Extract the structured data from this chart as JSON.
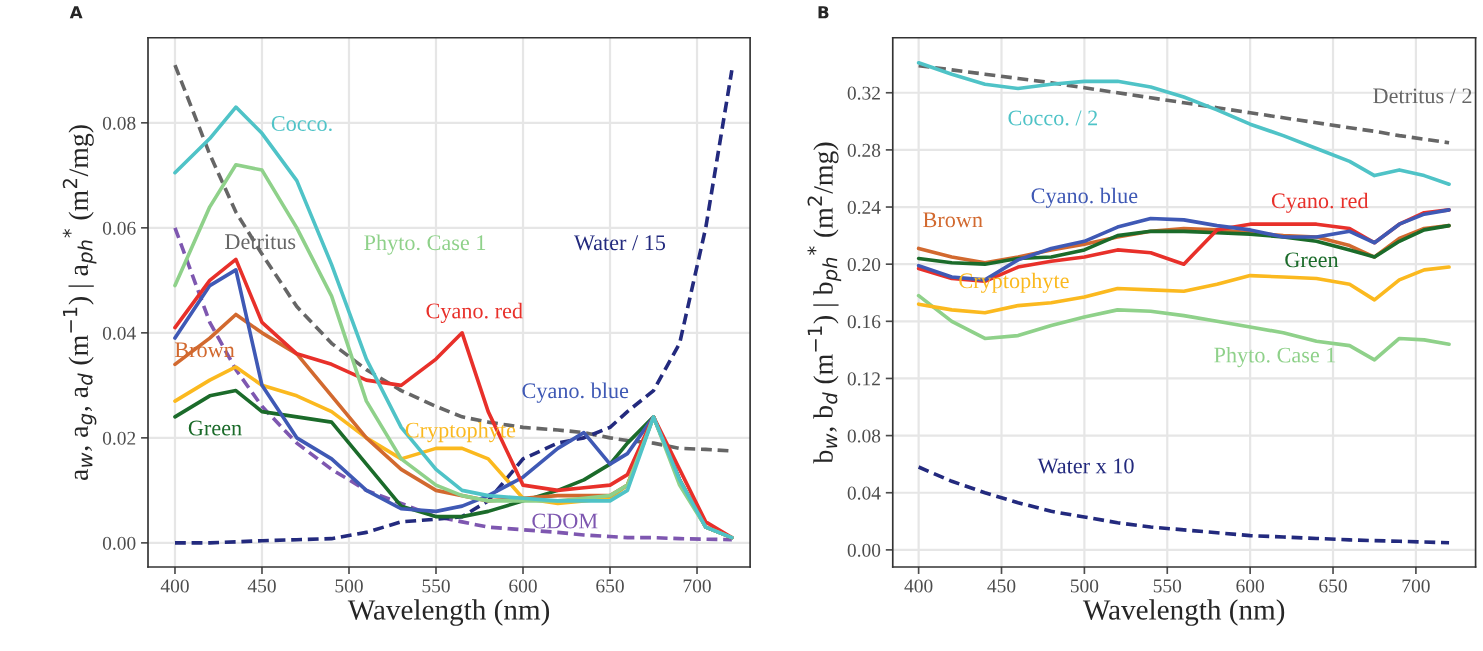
{
  "chart_data": [
    {
      "type": "line",
      "title": "A",
      "xlabel": "Wavelength (nm)",
      "ylabel": "a$_{w}$, a$_{g}$, a$_{d}$ (m$^{−1}$) | a$_{ph}$$^{*}$ (m$^{2}$/mg)",
      "xlim": [
        384.5,
        730.5
      ],
      "ylim": [
        -0.0046,
        0.0962
      ],
      "xticks": [
        400,
        450,
        500,
        550,
        600,
        650,
        700
      ],
      "yticks": [
        {
          "value": 0,
          "label": "0.00"
        },
        {
          "value": 0.02,
          "label": "0.02"
        },
        {
          "value": 0.04,
          "label": "0.04"
        },
        {
          "value": 0.06,
          "label": "0.06"
        },
        {
          "value": 0.08,
          "label": "0.08"
        }
      ],
      "grid": true,
      "legend": false,
      "x": [
        400,
        420,
        435,
        450,
        470,
        490,
        510,
        530,
        550,
        565,
        580,
        600,
        620,
        635,
        650,
        660,
        675,
        690,
        705,
        720
      ],
      "series": [
        {
          "name": "Detritus",
          "color": "#666666",
          "line_style": "dashed",
          "values": [
            0.091,
            0.074,
            0.063,
            0.055,
            0.045,
            0.038,
            0.033,
            0.029,
            0.026,
            0.024,
            0.023,
            0.022,
            0.0215,
            0.021,
            0.02,
            0.0195,
            0.019,
            0.018,
            0.0178,
            0.0175
          ]
        },
        {
          "name": "CDOM",
          "color": "#7e57b0",
          "line_style": "dashed",
          "values": [
            0.06,
            0.042,
            0.033,
            0.026,
            0.019,
            0.014,
            0.01,
            0.0075,
            0.005,
            0.004,
            0.003,
            0.0025,
            0.002,
            0.0015,
            0.0012,
            0.001,
            0.001,
            0.0008,
            0.0007,
            0.0006
          ]
        },
        {
          "name": "Water / 15",
          "color": "#232a7e",
          "line_style": "dashed",
          "values": [
            0.0,
            0.0,
            0.0002,
            0.0004,
            0.0006,
            0.0008,
            0.002,
            0.004,
            0.0045,
            0.005,
            0.008,
            0.016,
            0.019,
            0.02,
            0.022,
            0.025,
            0.029,
            0.038,
            0.06,
            0.09
          ]
        },
        {
          "name": "Green",
          "color": "#1b6b2a",
          "line_style": "solid",
          "values": [
            0.024,
            0.028,
            0.029,
            0.025,
            0.024,
            0.023,
            0.015,
            0.007,
            0.005,
            0.005,
            0.006,
            0.008,
            0.01,
            0.012,
            0.015,
            0.019,
            0.024,
            0.012,
            0.003,
            0.001
          ]
        },
        {
          "name": "Cryptophyte",
          "color": "#fbb91f",
          "line_style": "solid",
          "values": [
            0.027,
            0.031,
            0.0335,
            0.03,
            0.028,
            0.025,
            0.02,
            0.016,
            0.018,
            0.018,
            0.016,
            0.0085,
            0.0075,
            0.008,
            0.0085,
            0.011,
            0.024,
            null,
            null,
            null
          ]
        },
        {
          "name": "Brown",
          "color": "#d2692f",
          "line_style": "solid",
          "values": [
            0.034,
            0.039,
            0.0435,
            0.04,
            0.036,
            0.028,
            0.02,
            0.014,
            0.01,
            0.009,
            0.008,
            0.0085,
            0.009,
            0.009,
            0.009,
            0.011,
            0.024,
            0.012,
            0.003,
            0.001
          ]
        },
        {
          "name": "Cyano. blue",
          "color": "#3f59b5",
          "line_style": "solid",
          "values": [
            0.039,
            0.049,
            0.052,
            0.03,
            0.02,
            0.016,
            0.01,
            0.0065,
            0.006,
            0.007,
            0.009,
            0.0125,
            0.018,
            0.021,
            0.015,
            0.017,
            0.024,
            0.012,
            null,
            null
          ]
        },
        {
          "name": "Cyano. red",
          "color": "#e8302a",
          "line_style": "solid",
          "values": [
            0.041,
            0.05,
            0.054,
            0.042,
            0.036,
            0.034,
            0.031,
            0.03,
            0.035,
            0.04,
            0.025,
            0.011,
            0.01,
            0.0105,
            0.011,
            0.013,
            0.024,
            0.014,
            0.004,
            0.001
          ]
        },
        {
          "name": "Phyto. Case 1",
          "color": "#8fd18a",
          "line_style": "solid",
          "values": [
            0.049,
            0.064,
            0.072,
            0.071,
            0.06,
            0.047,
            0.027,
            0.016,
            0.011,
            0.009,
            0.008,
            0.008,
            0.008,
            0.0085,
            0.009,
            0.011,
            0.024,
            0.011,
            0.003,
            0.001
          ]
        },
        {
          "name": "Cocco.",
          "color": "#4fc3c7",
          "line_style": "solid",
          "values": [
            0.0705,
            0.077,
            0.083,
            0.078,
            0.069,
            0.053,
            0.035,
            0.022,
            0.014,
            0.01,
            0.009,
            0.0085,
            0.008,
            0.008,
            0.008,
            0.01,
            0.024,
            0.012,
            0.003,
            0.001
          ]
        }
      ]
    },
    {
      "type": "line",
      "title": "B",
      "xlabel": "Wavelength (nm)",
      "ylabel": "b$_{w}$, b$_{d}$ (m$^{−1}$) | b$_{ph}$$^{*}$ (m$^{2}$/mg)",
      "xlim": [
        384.4,
        736
      ],
      "ylim": [
        -0.012,
        0.3585
      ],
      "xticks": [
        400,
        450,
        500,
        550,
        600,
        650,
        700
      ],
      "yticks": [
        {
          "value": 0,
          "label": "0.00"
        },
        {
          "value": 0.04,
          "label": "0.04"
        },
        {
          "value": 0.08,
          "label": "0.08"
        },
        {
          "value": 0.12,
          "label": "0.12"
        },
        {
          "value": 0.16,
          "label": "0.16"
        },
        {
          "value": 0.2,
          "label": "0.20"
        },
        {
          "value": 0.24,
          "label": "0.24"
        },
        {
          "value": 0.28,
          "label": "0.28"
        },
        {
          "value": 0.32,
          "label": "0.32"
        }
      ],
      "grid": true,
      "legend": false,
      "x": [
        400,
        420,
        440,
        460,
        480,
        500,
        520,
        540,
        560,
        580,
        600,
        620,
        640,
        660,
        675,
        690,
        705,
        720
      ],
      "series": [
        {
          "name": "Detritus / 2",
          "color": "#666666",
          "line_style": "dashed",
          "values": [
            0.339,
            0.336,
            0.333,
            0.33,
            0.327,
            0.3235,
            0.32,
            0.3165,
            0.313,
            0.3095,
            0.306,
            0.3025,
            0.299,
            0.2955,
            0.293,
            0.29,
            0.2875,
            0.285
          ]
        },
        {
          "name": "Water x 10",
          "color": "#232a7e",
          "line_style": "dashed",
          "values": [
            0.058,
            0.048,
            0.04,
            0.033,
            0.027,
            0.023,
            0.019,
            0.016,
            0.014,
            0.012,
            0.01,
            0.009,
            0.008,
            0.007,
            0.0065,
            0.006,
            0.0055,
            0.005
          ]
        },
        {
          "name": "Phyto. Case 1",
          "color": "#8fd18a",
          "line_style": "solid",
          "values": [
            0.178,
            0.16,
            0.148,
            0.15,
            0.157,
            0.163,
            0.168,
            0.167,
            0.164,
            0.16,
            0.156,
            0.152,
            0.146,
            0.143,
            0.133,
            0.148,
            0.147,
            0.144
          ]
        },
        {
          "name": "Cryptophyte",
          "color": "#fbb91f",
          "line_style": "solid",
          "values": [
            0.172,
            0.168,
            0.166,
            0.171,
            0.173,
            0.177,
            0.183,
            0.182,
            0.181,
            0.186,
            0.192,
            0.191,
            0.19,
            0.186,
            0.175,
            0.189,
            0.196,
            0.198
          ]
        },
        {
          "name": "Brown",
          "color": "#d2692f",
          "line_style": "solid",
          "values": [
            0.211,
            0.205,
            0.201,
            0.205,
            0.21,
            0.214,
            0.219,
            0.223,
            0.225,
            0.224,
            0.222,
            0.22,
            0.219,
            0.213,
            0.205,
            0.218,
            0.225,
            0.227
          ]
        },
        {
          "name": "Green",
          "color": "#1b6b2a",
          "line_style": "solid",
          "values": [
            0.204,
            0.201,
            0.2,
            0.204,
            0.205,
            0.21,
            0.22,
            0.223,
            0.223,
            0.222,
            0.221,
            0.219,
            0.216,
            0.21,
            0.205,
            0.216,
            0.224,
            0.227
          ]
        },
        {
          "name": "Cyano. red",
          "color": "#e8302a",
          "line_style": "solid",
          "values": [
            0.197,
            0.19,
            0.188,
            0.198,
            0.202,
            0.205,
            0.21,
            0.208,
            0.2,
            0.224,
            0.228,
            0.228,
            0.228,
            0.225,
            0.215,
            0.228,
            0.236,
            0.238
          ]
        },
        {
          "name": "Cyano. blue",
          "color": "#3f59b5",
          "line_style": "solid",
          "values": [
            0.199,
            0.191,
            0.189,
            0.203,
            0.211,
            0.216,
            0.226,
            0.232,
            0.231,
            0.227,
            0.224,
            0.219,
            0.219,
            0.223,
            0.215,
            0.228,
            0.235,
            0.238
          ]
        },
        {
          "name": "Cocco. / 2",
          "color": "#4fc3c7",
          "line_style": "solid",
          "values": [
            0.341,
            0.333,
            0.326,
            0.323,
            0.326,
            0.328,
            0.328,
            0.324,
            0.317,
            0.308,
            0.298,
            0.29,
            0.281,
            0.272,
            0.262,
            0.266,
            0.262,
            0.256
          ]
        }
      ]
    }
  ]
}
